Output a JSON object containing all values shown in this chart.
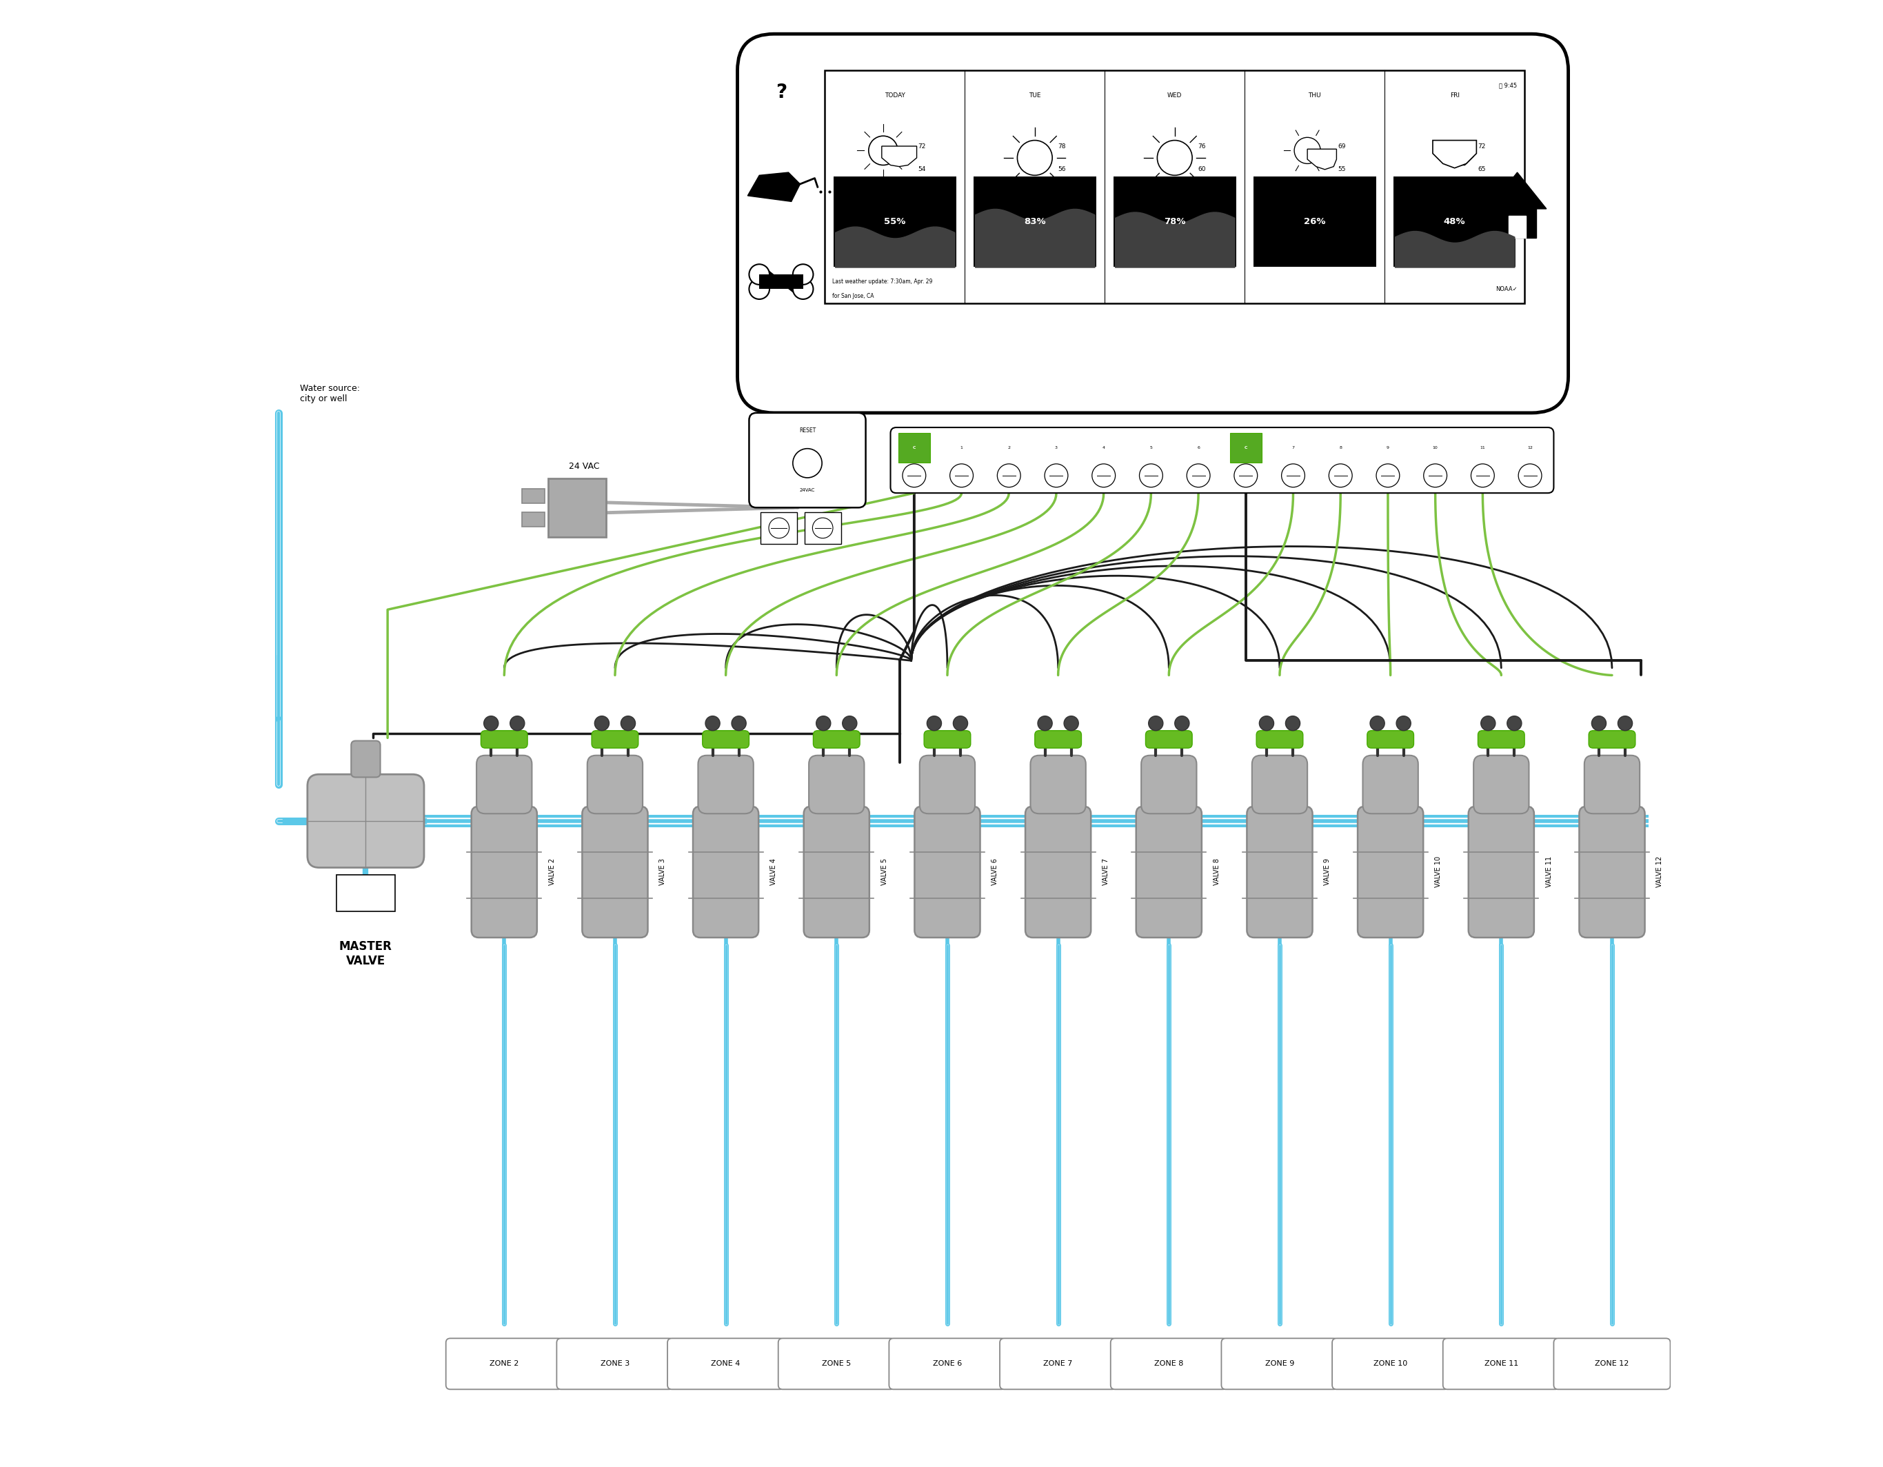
{
  "bg_color": "#ffffff",
  "zones": [
    "ZONE 2",
    "ZONE 3",
    "ZONE 4",
    "ZONE 5",
    "ZONE 6",
    "ZONE 7",
    "ZONE 8",
    "ZONE 9",
    "ZONE 10",
    "ZONE 11",
    "ZONE 12"
  ],
  "valve_labels": [
    "VALVE 2",
    "VALVE 3",
    "VALVE 4",
    "VALVE 5",
    "VALVE 6",
    "VALVE 7",
    "VALVE 8",
    "VALVE 9",
    "VALVE 10",
    "VALVE 11",
    "VALVE 12"
  ],
  "weather_cols": [
    "TODAY",
    "TUE",
    "WED",
    "THU",
    "FRI"
  ],
  "temps": [
    [
      "72",
      "54"
    ],
    [
      "78",
      "56"
    ],
    [
      "76",
      "60"
    ],
    [
      "69",
      "55"
    ],
    [
      "72",
      "65"
    ]
  ],
  "pcts": [
    "55%",
    "83%",
    "78%",
    "26%",
    "48%"
  ],
  "wire_green": "#7dc242",
  "wire_black": "#1a1a1a",
  "wire_gray": "#999999",
  "pipe_blue": "#5bc8e8",
  "pipe_white": "#ffffff",
  "valve_gray": "#b0b0b0",
  "valve_dark": "#888888",
  "master_valve_label": "MASTER\nVALVE",
  "water_source_label": "Water source:\ncity or well",
  "vac_label": "24 VAC",
  "noaa_text": "NOAA",
  "weather_footer": "Last weather update: 7:30am, Apr. 29",
  "weather_footer2": "for San Jose, CA",
  "signal_text": "9:45"
}
